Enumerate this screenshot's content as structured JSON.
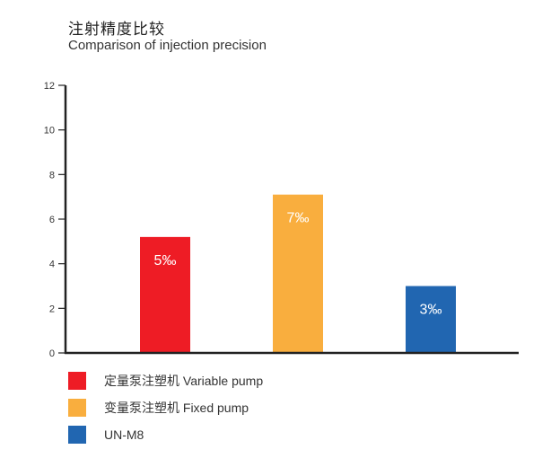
{
  "title": "注射精度比较",
  "subtitle": "Comparison of injection precision",
  "chart_data": {
    "type": "bar",
    "title": "注射精度比较",
    "subtitle": "Comparison of injection precision",
    "categories": [
      "定量泵注塑机 Variable pump",
      "变量泵注塑机 Fixed pump",
      "UN-M8"
    ],
    "values": [
      5.2,
      7.1,
      3.0
    ],
    "data_labels": [
      "5‰",
      "7‰",
      "3‰"
    ],
    "colors": [
      "#ee1c25",
      "#f9ae3e",
      "#2166b1"
    ],
    "ylim": [
      0,
      12
    ],
    "yticks": [
      0,
      2,
      4,
      6,
      8,
      10,
      12
    ],
    "grid": false,
    "legend_position": "bottom-left"
  },
  "legend": [
    {
      "label": "定量泵注塑机 Variable pump",
      "color": "#ee1c25"
    },
    {
      "label": "变量泵注塑机 Fixed pump",
      "color": "#f9ae3e"
    },
    {
      "label": "UN-M8",
      "color": "#2166b1"
    }
  ]
}
